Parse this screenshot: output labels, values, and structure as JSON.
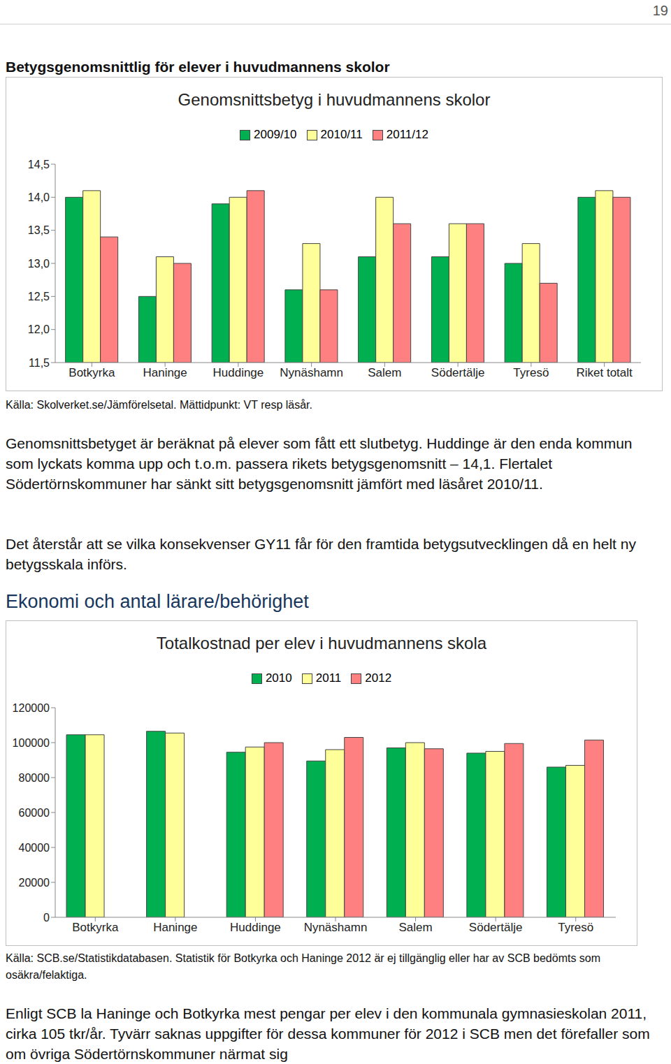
{
  "page_number": "19",
  "heading": "Betygsgenomsnittlig för elever i huvudmannens skolor",
  "chart_data": [
    {
      "type": "bar",
      "title": "Genomsnittsbetyg i huvudmannens skolor",
      "categories": [
        "Botkyrka",
        "Haninge",
        "Huddinge",
        "Nynäshamn",
        "Salem",
        "Södertälje",
        "Tyresö",
        "Riket totalt"
      ],
      "series": [
        {
          "name": "2009/10",
          "color": "#00b050",
          "values": [
            14.0,
            12.5,
            13.9,
            12.6,
            13.1,
            13.1,
            13.0,
            14.0
          ]
        },
        {
          "name": "2010/11",
          "color": "#ffff99",
          "values": [
            14.1,
            13.1,
            14.0,
            13.3,
            14.0,
            13.6,
            13.3,
            14.1
          ]
        },
        {
          "name": "2011/12",
          "color": "#ff8080",
          "values": [
            13.4,
            13.0,
            14.1,
            12.6,
            13.6,
            13.6,
            12.7,
            14.0
          ]
        }
      ],
      "ylim": [
        11.5,
        14.5
      ],
      "yticks": [
        {
          "value": 11.5,
          "label": "11,5"
        },
        {
          "value": 12.0,
          "label": "12,0"
        },
        {
          "value": 12.5,
          "label": "12,5"
        },
        {
          "value": 13.0,
          "label": "13,0"
        },
        {
          "value": 13.5,
          "label": "13,5"
        },
        {
          "value": 14.0,
          "label": "14,0"
        },
        {
          "value": 14.5,
          "label": "14,5"
        }
      ],
      "grid": false,
      "legend": "top"
    },
    {
      "type": "bar",
      "title": "Totalkostnad per elev i huvudmannens skola",
      "categories": [
        "Botkyrka",
        "Haninge",
        "Huddinge",
        "Nynäshamn",
        "Salem",
        "Södertälje",
        "Tyresö"
      ],
      "series": [
        {
          "name": "2010",
          "color": "#00b050",
          "values": [
            104500,
            106500,
            94500,
            89500,
            97000,
            94000,
            86000
          ]
        },
        {
          "name": "2011",
          "color": "#ffff99",
          "values": [
            104500,
            105500,
            97500,
            96000,
            100000,
            95000,
            87000
          ]
        },
        {
          "name": "2012",
          "color": "#ff8080",
          "values": [
            null,
            null,
            100000,
            103000,
            96500,
            99500,
            101500
          ]
        }
      ],
      "ylim": [
        0,
        120000
      ],
      "yticks": [
        0,
        20000,
        40000,
        60000,
        80000,
        100000,
        120000
      ],
      "grid": false,
      "legend": "top"
    }
  ],
  "source_1": "Källa: Skolverket.se/Jämförelsetal. Mättidpunkt: VT resp läsår.",
  "paragraph_1": "Genomsnittsbetyget är beräknat på elever som fått ett slutbetyg. Huddinge är den enda kommun som lyckats komma upp och t.o.m. passera rikets betygsgenomsnitt – 14,1. Flertalet Södertörnskommuner har sänkt sitt betygsgenomsnitt jämfört med läsåret 2010/11.",
  "paragraph_2": "Det återstår att se vilka konsekvenser GY11 får för den framtida betygsutvecklingen då en helt ny betygsskala införs.",
  "heading_2": "Ekonomi och antal lärare/behörighet",
  "source_2": "Källa: SCB.se/Statistikdatabasen. Statistik för Botkyrka och Haninge 2012 är ej tillgänglig eller har av SCB bedömts som osäkra/felaktiga.",
  "paragraph_3": "Enligt SCB la Haninge och Botkyrka mest pengar per elev i den kommunala gymnasieskolan 2011, cirka 105 tkr/år. Tyvärr saknas uppgifter för dessa kommuner för 2012 i SCB men det förefaller som om övriga Södertörnskommuner närmat sig"
}
